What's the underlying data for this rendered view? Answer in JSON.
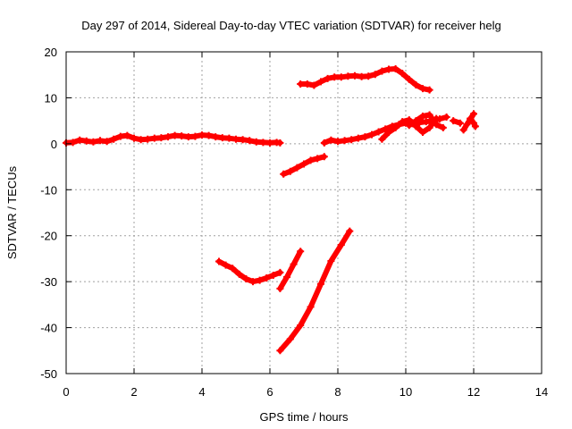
{
  "chart_data": {
    "type": "scatter",
    "title": "Day 297 of 2014, Sidereal Day-to-day VTEC variation (SDTVAR) for receiver helg",
    "xlabel": "GPS time / hours",
    "ylabel": "SDTVAR / TECUs",
    "xlim": [
      0,
      14
    ],
    "ylim": [
      -50,
      20
    ],
    "xticks": [
      "0",
      "2",
      "4",
      "6",
      "8",
      "10",
      "12",
      "14"
    ],
    "yticks": [
      "20",
      "10",
      "0",
      "-10",
      "-20",
      "-30",
      "-40",
      "-50"
    ],
    "grid": true,
    "color": "#ff0000",
    "series": [
      {
        "x": [
          0.0,
          0.2,
          0.4,
          0.6,
          0.8,
          1.0,
          1.2,
          1.4,
          1.6,
          1.8,
          2.0,
          2.2,
          2.4,
          2.6,
          2.8,
          3.0,
          3.2,
          3.4,
          3.6,
          3.8,
          4.0,
          4.2,
          4.4,
          4.6,
          4.8,
          5.0,
          5.2,
          5.4,
          5.6,
          5.8,
          6.0,
          6.2,
          6.3
        ],
        "y": [
          0.2,
          0.3,
          0.8,
          0.6,
          0.4,
          0.7,
          0.5,
          1.0,
          1.6,
          1.8,
          1.2,
          0.9,
          1.0,
          1.2,
          1.3,
          1.5,
          1.8,
          1.7,
          1.5,
          1.6,
          1.9,
          1.8,
          1.5,
          1.3,
          1.2,
          1.0,
          0.9,
          0.7,
          0.4,
          0.3,
          0.2,
          0.3,
          0.2
        ]
      },
      {
        "x": [
          6.4,
          6.6,
          6.8,
          7.0,
          7.2,
          7.4,
          7.6
        ],
        "y": [
          -6.6,
          -6.0,
          -5.2,
          -4.4,
          -3.6,
          -3.2,
          -2.8
        ]
      },
      {
        "x": [
          6.9,
          7.1,
          7.3,
          7.5,
          7.7,
          7.9,
          8.1,
          8.3,
          8.5,
          8.7,
          8.9,
          9.1,
          9.3,
          9.5,
          9.7,
          9.9,
          10.1,
          10.3,
          10.5,
          10.7
        ],
        "y": [
          13.0,
          13.0,
          12.7,
          13.5,
          14.2,
          14.5,
          14.5,
          14.7,
          14.8,
          14.6,
          14.7,
          15.1,
          15.8,
          16.2,
          16.3,
          15.3,
          14.0,
          12.8,
          12.0,
          11.7
        ]
      },
      {
        "x": [
          7.6,
          7.8,
          8.0,
          8.2,
          8.4,
          8.6,
          8.8,
          9.0,
          9.2,
          9.4,
          9.6,
          9.8,
          10.0,
          10.2,
          10.4,
          10.6,
          10.8,
          11.0,
          11.2
        ],
        "y": [
          0.2,
          0.8,
          0.5,
          0.7,
          0.9,
          1.2,
          1.5,
          2.0,
          2.6,
          3.2,
          3.8,
          4.2,
          4.5,
          4.4,
          4.6,
          4.8,
          5.0,
          5.4,
          5.8
        ]
      },
      {
        "x": [
          9.3,
          9.5,
          9.7,
          9.9,
          10.1,
          10.3,
          10.5,
          10.7,
          10.9
        ],
        "y": [
          1.0,
          2.5,
          3.5,
          4.8,
          5.2,
          3.8,
          2.5,
          3.5,
          5.5
        ]
      },
      {
        "x": [
          10.1,
          10.3,
          10.5,
          10.7,
          10.9,
          11.1
        ],
        "y": [
          4.0,
          5.0,
          6.0,
          6.3,
          4.2,
          3.5
        ]
      },
      {
        "x": [
          11.4,
          11.6
        ],
        "y": [
          5.0,
          4.5
        ]
      },
      {
        "x": [
          11.7,
          11.8,
          11.9,
          12.0
        ],
        "y": [
          3.0,
          4.2,
          5.3,
          6.5
        ]
      },
      {
        "x": [
          11.9,
          12.0,
          12.05
        ],
        "y": [
          5.5,
          4.5,
          3.8
        ]
      },
      {
        "x": [
          4.5,
          4.7,
          4.9,
          5.1,
          5.3,
          5.5,
          5.7,
          5.9,
          6.1,
          6.3
        ],
        "y": [
          -25.6,
          -26.4,
          -27.1,
          -28.4,
          -29.4,
          -30.0,
          -29.7,
          -29.2,
          -28.6,
          -28.0
        ]
      },
      {
        "x": [
          6.3,
          6.5,
          6.7,
          6.9
        ],
        "y": [
          -31.5,
          -29.0,
          -26.2,
          -23.4
        ]
      },
      {
        "x": [
          6.3,
          6.6,
          6.9,
          7.2,
          7.5,
          7.8,
          8.1,
          8.35
        ],
        "y": [
          -45.0,
          -42.5,
          -39.5,
          -35.5,
          -30.5,
          -25.5,
          -22.0,
          -19.0
        ]
      }
    ]
  }
}
